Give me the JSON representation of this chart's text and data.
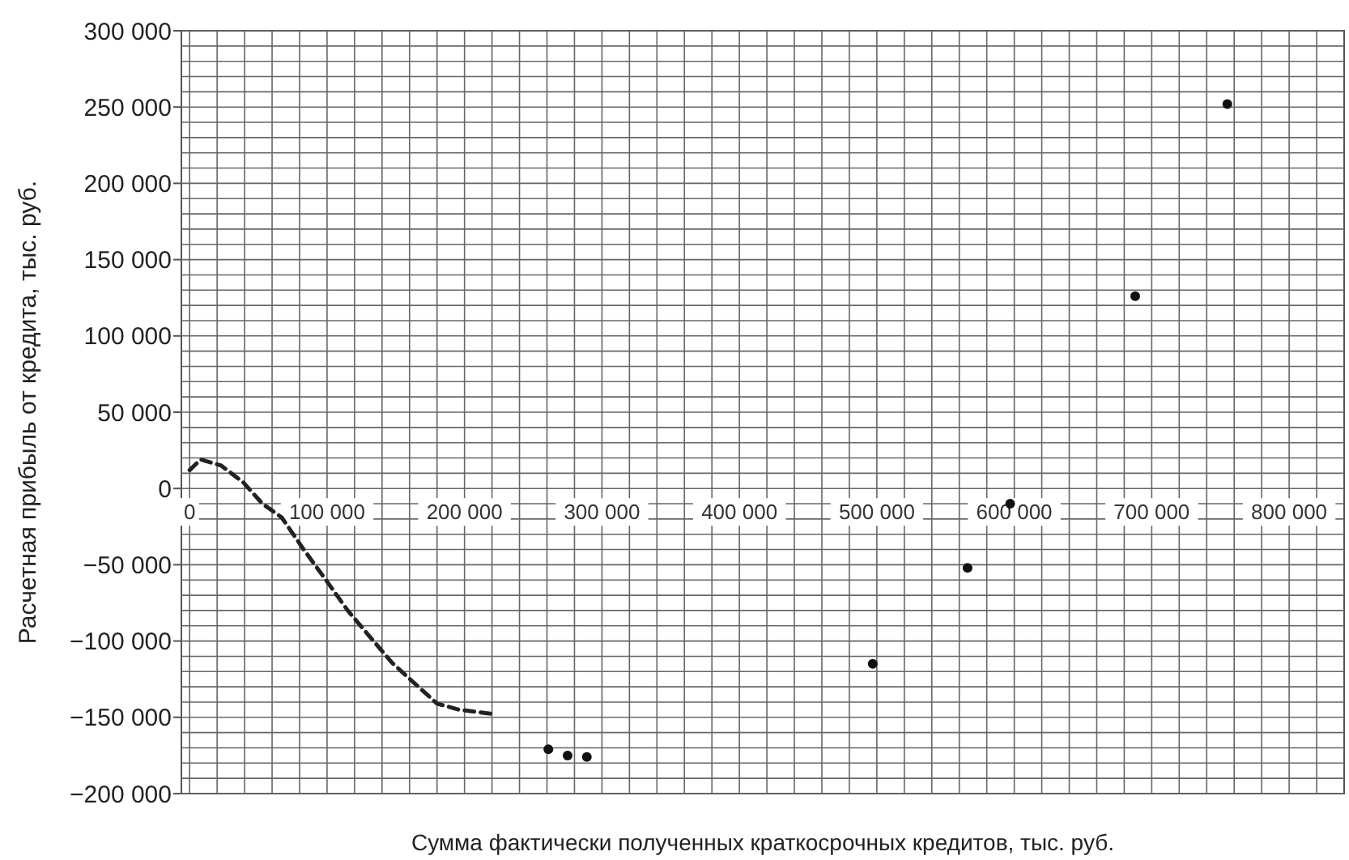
{
  "chart_data": {
    "type": "scatter",
    "xlabel": "Сумма фактически полученных краткосрочных кредитов, тыс. руб.",
    "ylabel": "Расчетная прибыль от кредита, тыс. руб.",
    "xlim": [
      -6000,
      840000
    ],
    "xticks": [
      0,
      {
        "value": 20000,
        "label": null
      },
      {
        "value": 40000,
        "label": null
      },
      {
        "value": 60000,
        "label": null
      },
      {
        "value": 80000,
        "label": null
      },
      {
        "value": 100000,
        "label": "100 000"
      },
      {
        "value": 120000,
        "label": null
      },
      {
        "value": 140000,
        "label": null
      },
      {
        "value": 160000,
        "label": null
      },
      {
        "value": 180000,
        "label": null
      },
      {
        "value": 200000,
        "label": "200 000"
      },
      {
        "value": 220000,
        "label": null
      },
      {
        "value": 240000,
        "label": null
      },
      {
        "value": 260000,
        "label": null
      },
      {
        "value": 280000,
        "label": null
      },
      {
        "value": 300000,
        "label": "300 000"
      },
      {
        "value": 320000,
        "label": null
      },
      {
        "value": 340000,
        "label": null
      },
      {
        "value": 360000,
        "label": null
      },
      {
        "value": 380000,
        "label": null
      },
      {
        "value": 400000,
        "label": "400 000"
      },
      {
        "value": 420000,
        "label": null
      },
      {
        "value": 440000,
        "label": null
      },
      {
        "value": 460000,
        "label": null
      },
      {
        "value": 480000,
        "label": null
      },
      {
        "value": 500000,
        "label": "500 000"
      },
      {
        "value": 520000,
        "label": null
      },
      {
        "value": 540000,
        "label": null
      },
      {
        "value": 560000,
        "label": null
      },
      {
        "value": 580000,
        "label": null
      },
      {
        "value": 600000,
        "label": "600 000"
      },
      {
        "value": 620000,
        "label": null
      },
      {
        "value": 640000,
        "label": null
      },
      {
        "value": 660000,
        "label": null
      },
      {
        "value": 680000,
        "label": null
      },
      {
        "value": 700000,
        "label": "700 000"
      },
      {
        "value": 720000,
        "label": null
      },
      {
        "value": 740000,
        "label": null
      },
      {
        "value": 760000,
        "label": null
      },
      {
        "value": 780000,
        "label": null
      },
      {
        "value": 800000,
        "label": "800 000"
      },
      {
        "value": 820000,
        "label": null
      }
    ],
    "ylim": [
      -200000,
      300000
    ],
    "yticks": [
      {
        "value": -200000,
        "label": "−200 000"
      },
      {
        "value": -190000,
        "label": null
      },
      {
        "value": -180000,
        "label": null
      },
      {
        "value": -170000,
        "label": null
      },
      {
        "value": -160000,
        "label": null
      },
      {
        "value": -150000,
        "label": "−150 000"
      },
      {
        "value": -140000,
        "label": null
      },
      {
        "value": -130000,
        "label": null
      },
      {
        "value": -120000,
        "label": null
      },
      {
        "value": -110000,
        "label": null
      },
      {
        "value": -100000,
        "label": "−100 000"
      },
      {
        "value": -90000,
        "label": null
      },
      {
        "value": -80000,
        "label": null
      },
      {
        "value": -70000,
        "label": null
      },
      {
        "value": -60000,
        "label": null
      },
      {
        "value": -50000,
        "label": "−50 000"
      },
      {
        "value": -40000,
        "label": null
      },
      {
        "value": -30000,
        "label": null
      },
      {
        "value": -20000,
        "label": null
      },
      {
        "value": -10000,
        "label": null
      },
      0,
      {
        "value": 10000,
        "label": null
      },
      {
        "value": 20000,
        "label": null
      },
      {
        "value": 30000,
        "label": null
      },
      {
        "value": 40000,
        "label": null
      },
      {
        "value": 50000,
        "label": "50 000"
      },
      {
        "value": 60000,
        "label": null
      },
      {
        "value": 70000,
        "label": null
      },
      {
        "value": 80000,
        "label": null
      },
      {
        "value": 90000,
        "label": null
      },
      {
        "value": 100000,
        "label": "100 000"
      },
      {
        "value": 110000,
        "label": null
      },
      {
        "value": 120000,
        "label": null
      },
      {
        "value": 130000,
        "label": null
      },
      {
        "value": 140000,
        "label": null
      },
      {
        "value": 150000,
        "label": "150 000"
      },
      {
        "value": 160000,
        "label": null
      },
      {
        "value": 170000,
        "label": null
      },
      {
        "value": 180000,
        "label": null
      },
      {
        "value": 190000,
        "label": null
      },
      {
        "value": 200000,
        "label": "200 000"
      },
      {
        "value": 210000,
        "label": null
      },
      {
        "value": 220000,
        "label": null
      },
      {
        "value": 230000,
        "label": null
      },
      {
        "value": 240000,
        "label": null
      },
      {
        "value": 250000,
        "label": "250 000"
      },
      {
        "value": 260000,
        "label": null
      },
      {
        "value": 270000,
        "label": null
      },
      {
        "value": 280000,
        "label": null
      },
      {
        "value": 290000,
        "label": null
      },
      {
        "value": 300000,
        "label": "300 000"
      }
    ],
    "grid": true,
    "marker": "circle",
    "series": [
      {
        "type": "line",
        "line_style": "dashed",
        "marker": "none",
        "color": "#222222",
        "x": [
          0,
          8000,
          23000,
          39000,
          53000,
          67000,
          83000,
          100000,
          115000,
          130000,
          147000,
          164000,
          180000,
          196000,
          223000
        ],
        "values": [
          12000,
          19000,
          15000,
          4000,
          -10000,
          -19000,
          -40000,
          -61000,
          -80000,
          -96000,
          -114000,
          -128000,
          -141000,
          -145000,
          -148000
        ]
      },
      {
        "type": "scatter",
        "color": "#111111",
        "x": [
          261000,
          275000,
          289000,
          497000,
          566000,
          597000,
          688000,
          755000
        ],
        "values": [
          -171000,
          -175000,
          -176000,
          -115000,
          -52000,
          -10000,
          126000,
          252000
        ]
      }
    ]
  }
}
